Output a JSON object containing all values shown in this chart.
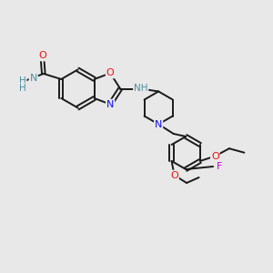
{
  "bg_color": "#e8e8e8",
  "bond_color": "#1a1a1a",
  "bond_width": 1.4,
  "atom_colors": {
    "N": "#1010ee",
    "O": "#ee1010",
    "F": "#cc00cc",
    "H": "#4a8fa0"
  },
  "scale": 0.72
}
